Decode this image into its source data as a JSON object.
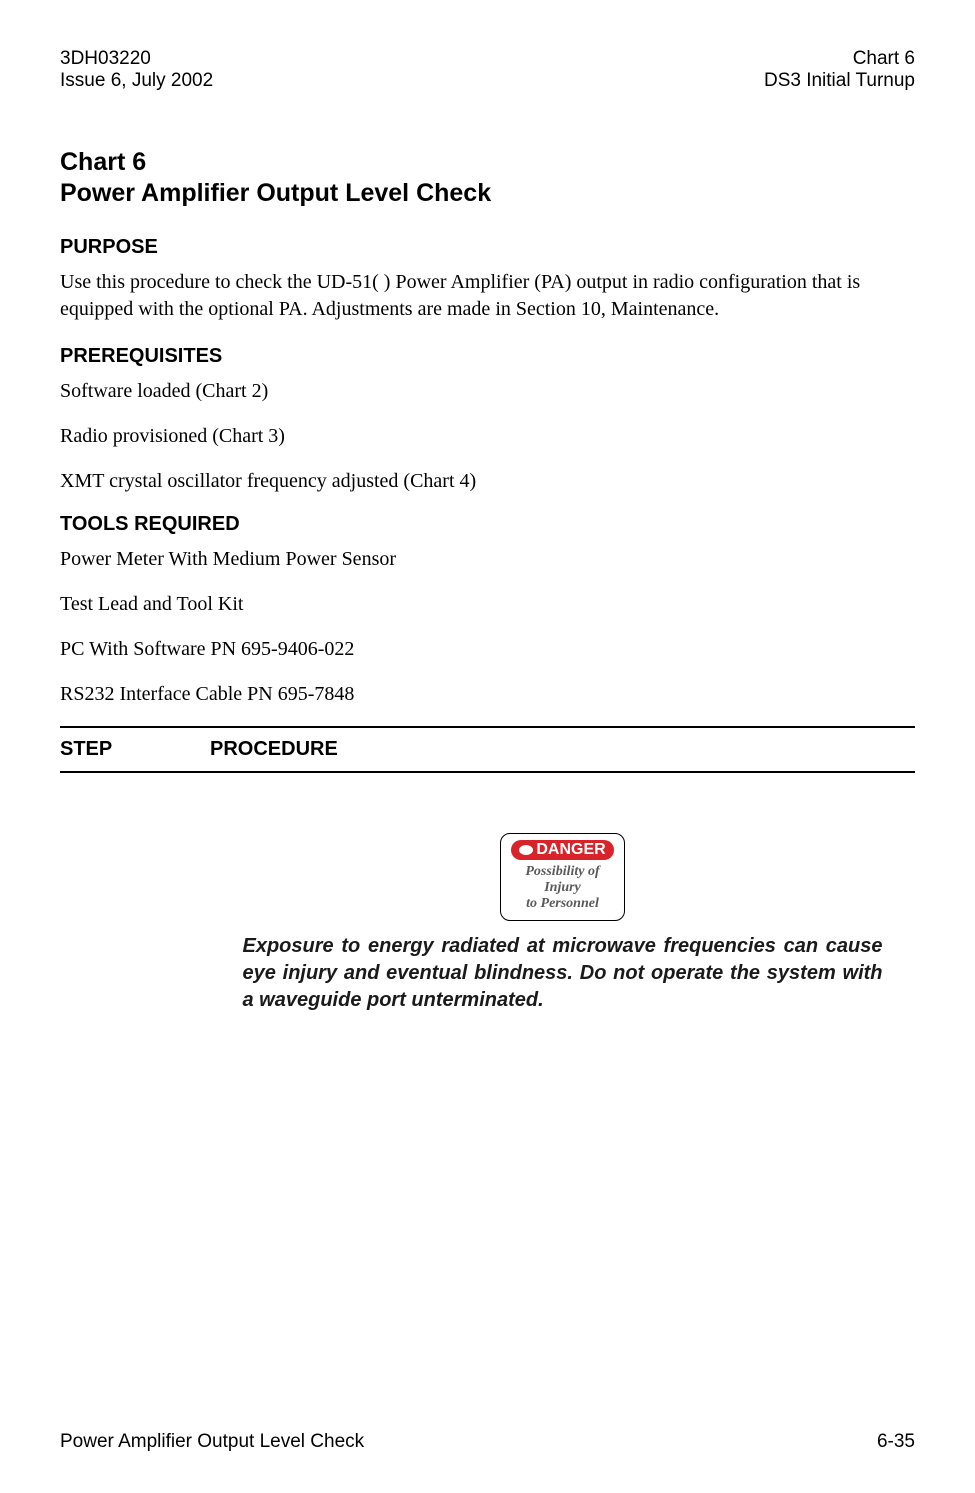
{
  "header": {
    "left_line1": "3DH03220",
    "left_line2": "Issue 6, July 2002",
    "right_line1": "Chart 6",
    "right_line2": "DS3 Initial Turnup"
  },
  "title": {
    "line1": "Chart 6",
    "line2": "Power Amplifier Output Level Check"
  },
  "sections": {
    "purpose": {
      "heading": "PURPOSE",
      "text": "Use this procedure to check the UD-51( ) Power Amplifier (PA) output in radio configuration that is equipped with the optional PA. Adjustments are made in Section 10, Maintenance."
    },
    "prerequisites": {
      "heading": "PREREQUISITES",
      "items": [
        "Software loaded (Chart 2)",
        "Radio  provisioned (Chart 3)",
        "XMT crystal oscillator frequency adjusted (Chart 4)"
      ]
    },
    "tools": {
      "heading": "TOOLS REQUIRED",
      "items": [
        "Power Meter With Medium Power Sensor",
        "Test Lead and Tool Kit",
        "PC With Software PN 695-9406-022",
        "RS232 Interface Cable PN 695-7848"
      ]
    }
  },
  "table_header": {
    "step": "STEP",
    "procedure": "PROCEDURE"
  },
  "danger": {
    "label": "DANGER",
    "sub1": "Possibility of",
    "sub2": "Injury",
    "sub3": "to Personnel",
    "label_bg": "#d8232a",
    "label_fg": "#ffffff",
    "sub_color": "#5a5a5a"
  },
  "warning_text": "Exposure to energy radiated at microwave frequencies can cause eye injury and eventual blindness. Do not operate the system with a waveguide port unterminated.",
  "footer": {
    "left": "Power Amplifier Output Level Check",
    "right": "6-35"
  }
}
